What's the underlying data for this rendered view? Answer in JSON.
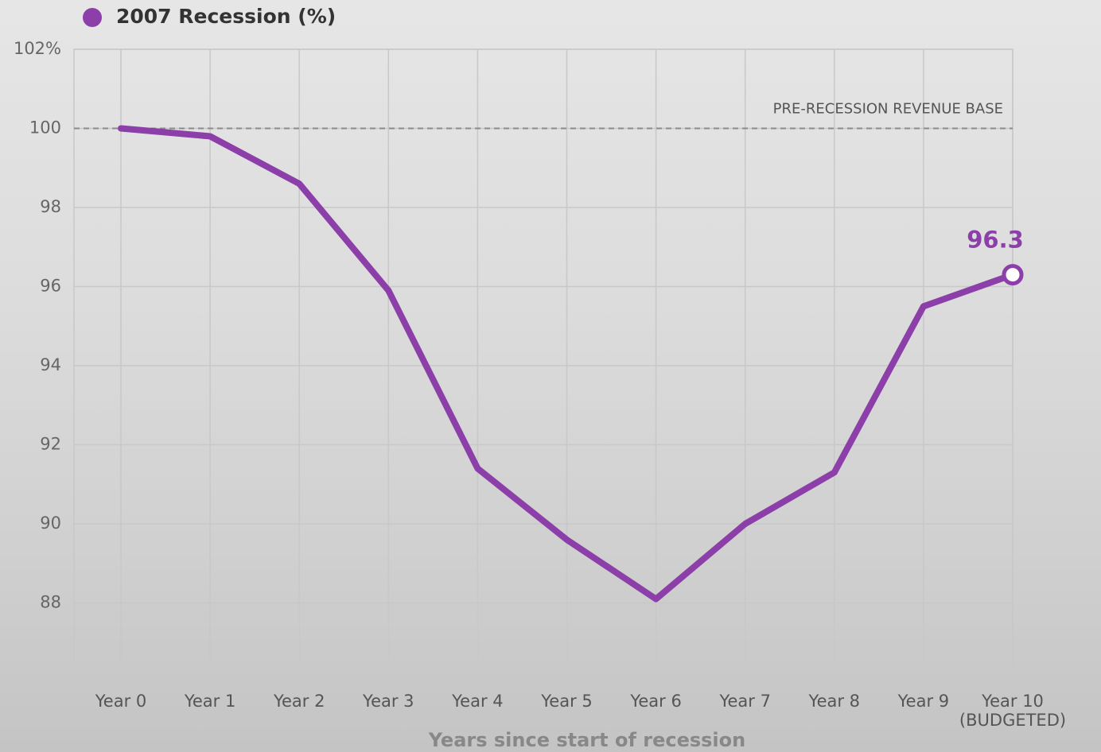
{
  "chart_data": {
    "type": "line",
    "x_label": "Years since start of recession",
    "categories": [
      "Year 0",
      "Year 1",
      "Year 2",
      "Year 3",
      "Year 4",
      "Year 5",
      "Year 6",
      "Year 7",
      "Year 8",
      "Year 9",
      "Year 10\n(BUDGETED)"
    ],
    "series": [
      {
        "name": "2007 Recession (%)",
        "color": "#8c3fa8",
        "values": [
          100,
          99.8,
          98.6,
          95.9,
          91.4,
          89.6,
          88.1,
          90.0,
          91.3,
          95.5,
          96.3
        ]
      }
    ],
    "ylim": [
      86,
      102
    ],
    "yticks": [
      88,
      90,
      92,
      94,
      96,
      98,
      100,
      {
        "value": 102,
        "label": "102%"
      }
    ],
    "grid": true,
    "reference_line": {
      "value": 100,
      "label": "PRE-RECESSION REVENUE BASE"
    },
    "legend": "top-left"
  }
}
